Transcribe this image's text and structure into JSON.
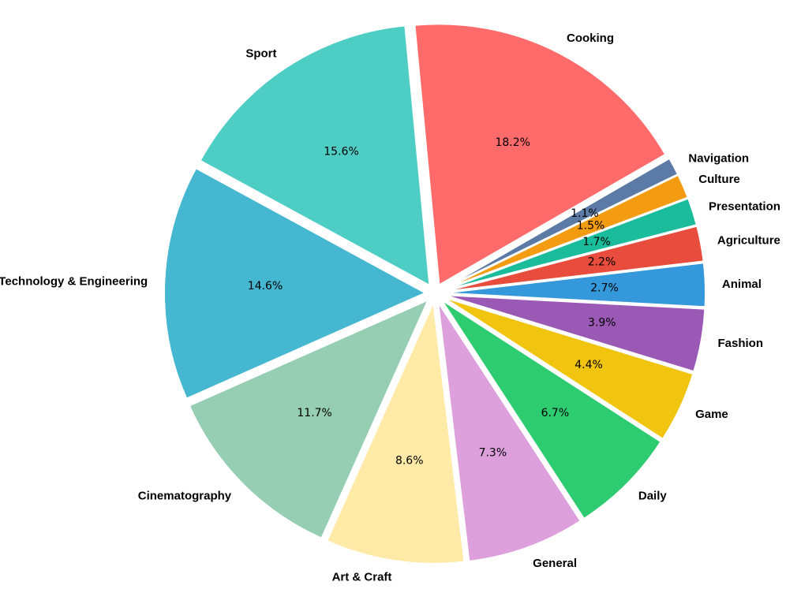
{
  "chart_data": {
    "type": "pie",
    "title": "",
    "start_angle_deg": 30,
    "direction": "counterclockwise",
    "legend": "none",
    "slices": [
      {
        "label": "Cooking",
        "value": 18.2,
        "pct_text": "18.2%",
        "color": "#FF6B6B"
      },
      {
        "label": "Sport",
        "value": 15.6,
        "pct_text": "15.6%",
        "color": "#4ECDC4"
      },
      {
        "label": "Technology & Engineering",
        "value": 14.6,
        "pct_text": "14.6%",
        "color": "#45B7D1"
      },
      {
        "label": "Cinematography",
        "value": 11.7,
        "pct_text": "11.7%",
        "color": "#96CEB4"
      },
      {
        "label": "Art & Craft",
        "value": 8.6,
        "pct_text": "8.6%",
        "color": "#FFEAA7"
      },
      {
        "label": "General",
        "value": 7.3,
        "pct_text": "7.3%",
        "color": "#DDA0DD"
      },
      {
        "label": "Daily",
        "value": 6.7,
        "pct_text": "6.7%",
        "color": "#2ECC71"
      },
      {
        "label": "Game",
        "value": 4.4,
        "pct_text": "4.4%",
        "color": "#F1C40F"
      },
      {
        "label": "Fashion",
        "value": 3.9,
        "pct_text": "3.9%",
        "color": "#9B59B6"
      },
      {
        "label": "Animal",
        "value": 2.7,
        "pct_text": "2.7%",
        "color": "#3498DB"
      },
      {
        "label": "Agriculture",
        "value": 2.2,
        "pct_text": "2.2%",
        "color": "#E74C3C"
      },
      {
        "label": "Presentation",
        "value": 1.7,
        "pct_text": "1.7%",
        "color": "#1ABC9C"
      },
      {
        "label": "Culture",
        "value": 1.5,
        "pct_text": "1.5%",
        "color": "#F39C12"
      },
      {
        "label": "Navigation",
        "value": 1.1,
        "pct_text": "1.1%",
        "color": "#5B7BA6"
      }
    ]
  }
}
